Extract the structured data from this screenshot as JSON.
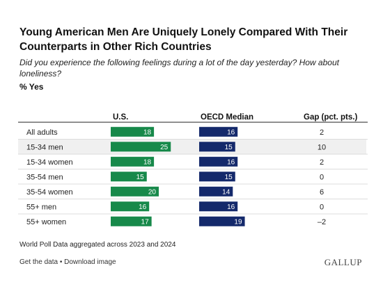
{
  "header": {
    "title": "Young American Men Are Uniquely Lonely Compared With Their Counterparts in Other Rich Countries",
    "subtitle": "Did you experience the following feelings during a lot of the day yesterday? How about loneliness?",
    "unit": "% Yes"
  },
  "columns": {
    "us": "U.S.",
    "oecd": "OECD Median",
    "gap": "Gap (pct. pts.)"
  },
  "chart_data": {
    "type": "bar",
    "categories": [
      "All adults",
      "15-34 men",
      "15-34 women",
      "35-54 men",
      "35-54 women",
      "55+ men",
      "55+ women"
    ],
    "series": [
      {
        "name": "U.S.",
        "values": [
          18,
          25,
          18,
          15,
          20,
          16,
          17
        ],
        "color": "#17894a"
      },
      {
        "name": "OECD Median",
        "values": [
          16,
          15,
          16,
          15,
          14,
          16,
          19
        ],
        "color": "#14296b"
      }
    ],
    "gap": [
      "2",
      "10",
      "2",
      "0",
      "6",
      "0",
      "–2"
    ],
    "highlight_row": 1,
    "highlight_color": "#f0f0f0"
  },
  "footer": {
    "note": "World Poll Data aggregated across 2023 and 2024",
    "get_data": "Get the data",
    "separator": "•",
    "download": "Download image",
    "brand": "GALLUP"
  }
}
